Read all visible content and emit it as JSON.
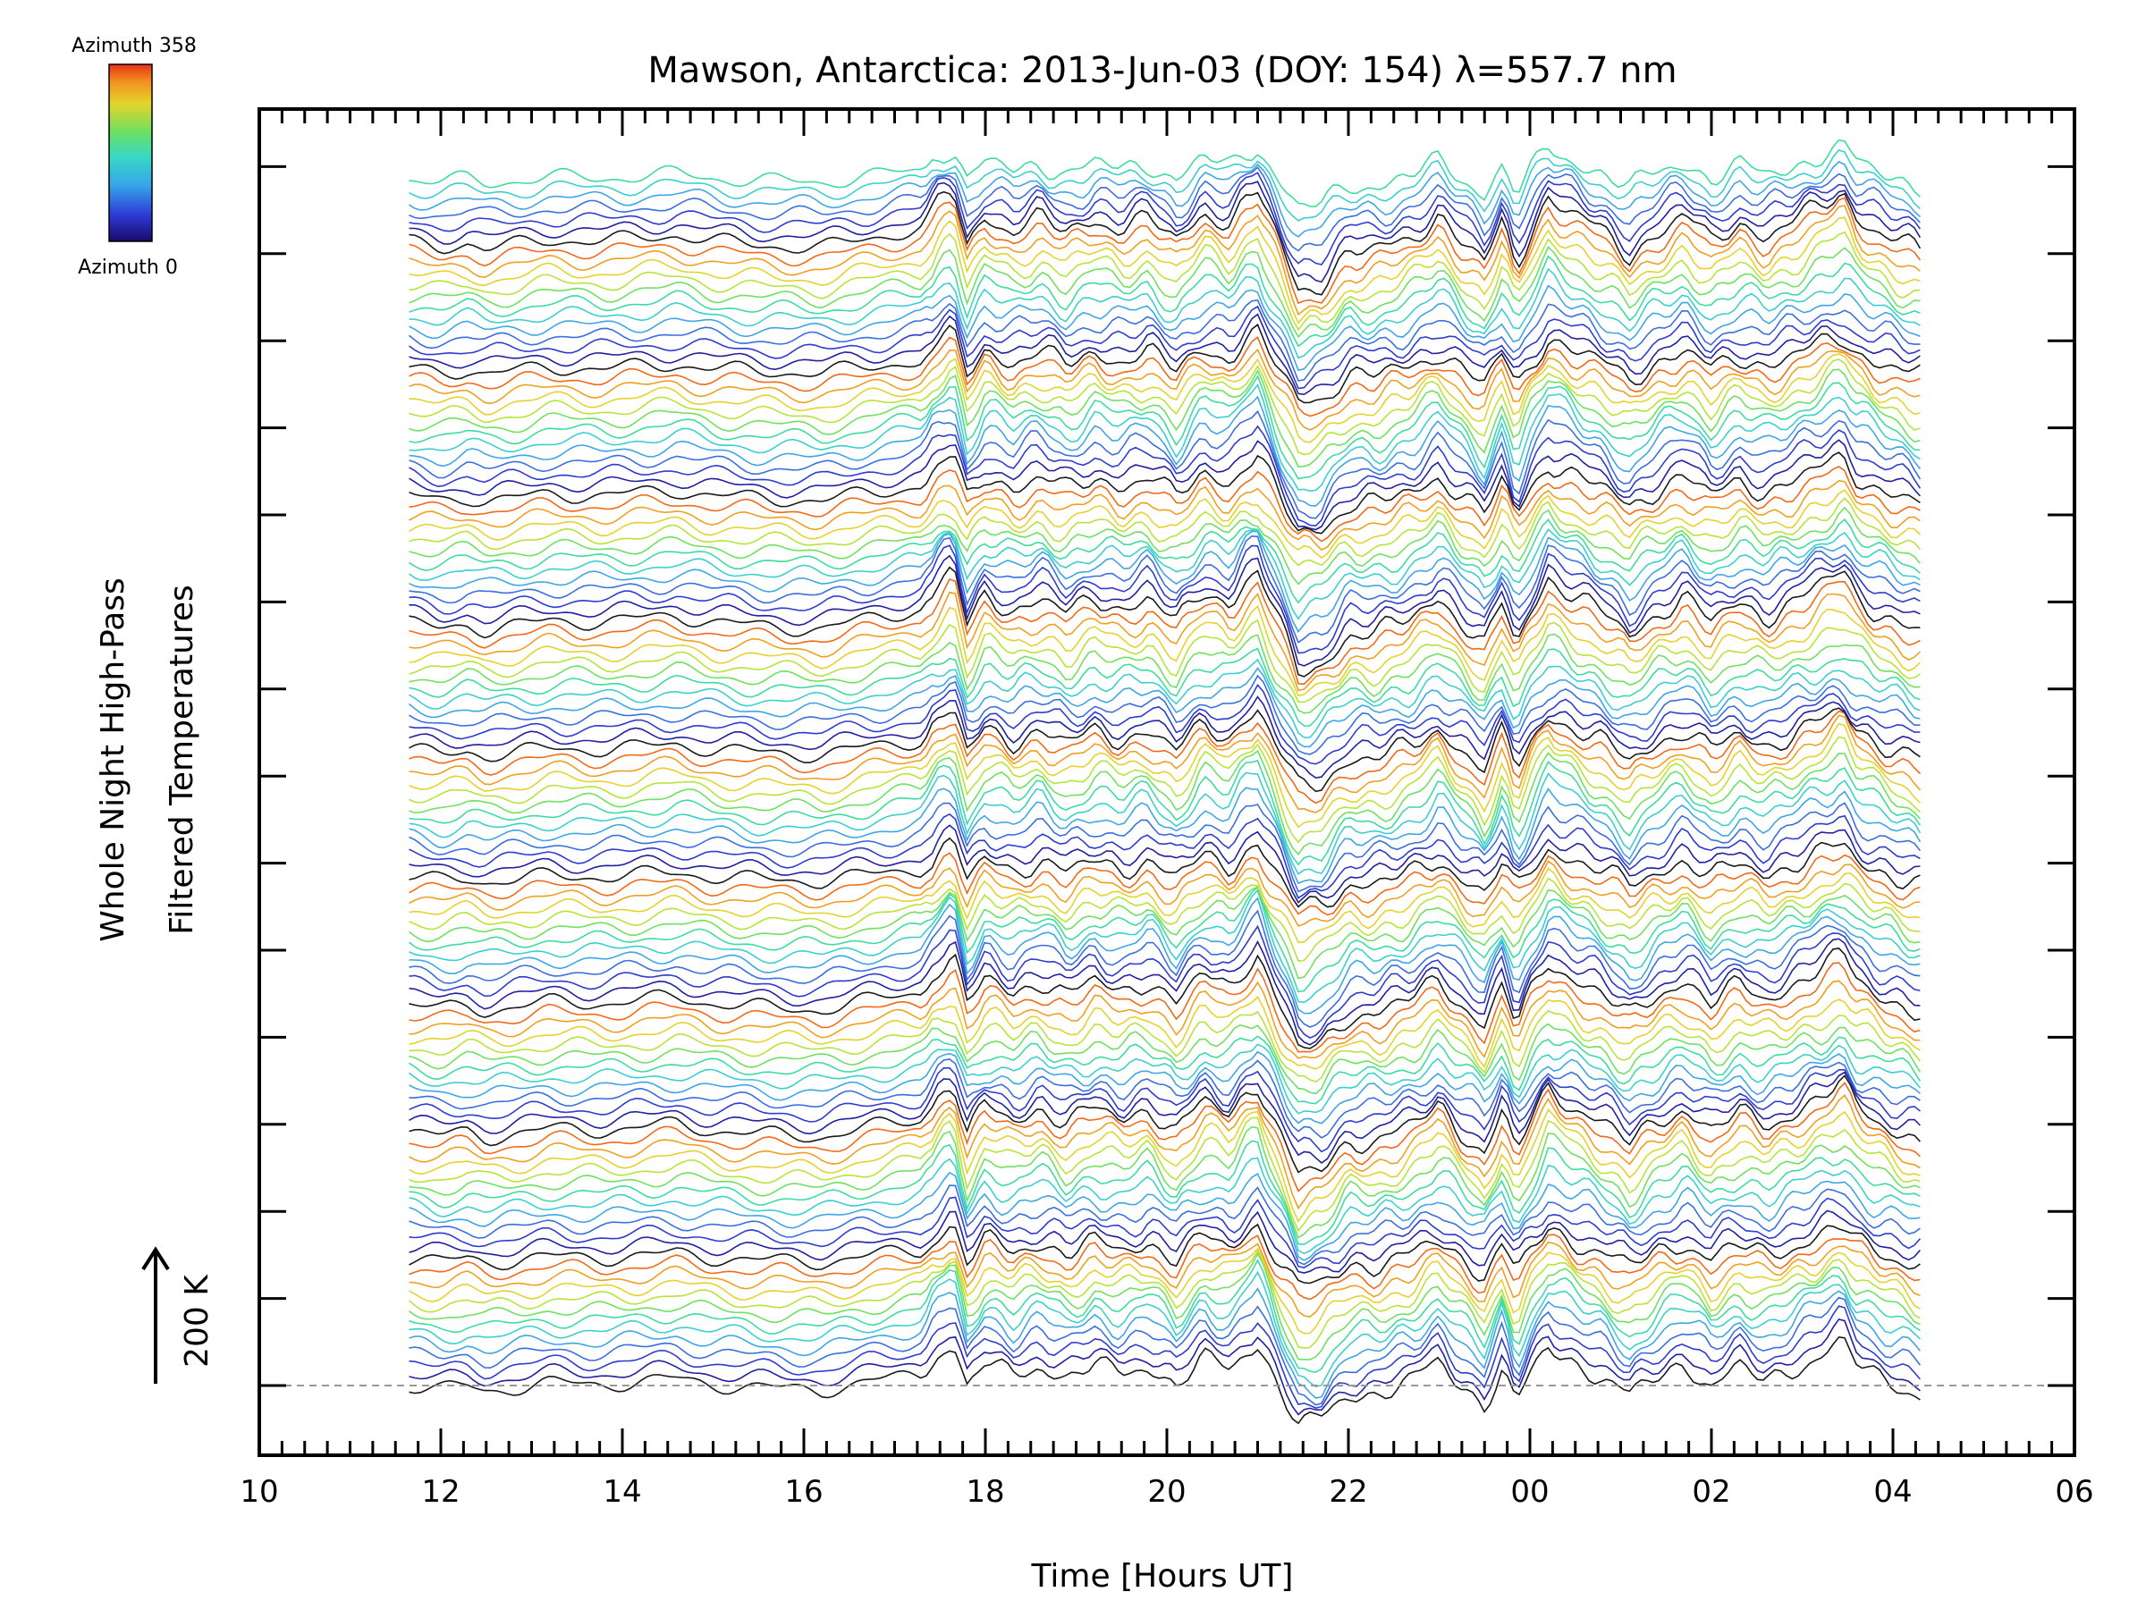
{
  "chart_data": {
    "type": "line",
    "title": "Mawson, Antarctica: 2013-Jun-03 (DOY: 154) λ=557.7 nm",
    "xlabel": "Time [Hours UT]",
    "ylabel_line1": "Whole Night High-Pass",
    "ylabel_line2": "Filtered Temperatures",
    "scale_label": "200 K",
    "colorbar": {
      "top_label": "Azimuth 358",
      "bottom_label": "Azimuth 0",
      "colormap": "rainbow",
      "min": 0,
      "max": 358
    },
    "x_range_hours_ut": [
      10,
      30
    ],
    "x_tick_labels": [
      "10",
      "12",
      "14",
      "16",
      "18",
      "20",
      "22",
      "00",
      "02",
      "04",
      "06"
    ],
    "data_span_hours_ut": [
      11.65,
      28.3
    ],
    "stacked_offset_traces": 115,
    "baseline_dashed": true,
    "color_cycle": [
      "#1a1a1a",
      "#2020a0",
      "#2e3ccf",
      "#3b6fe0",
      "#3fa6e6",
      "#3ccfd0",
      "#3ddca0",
      "#6fe060",
      "#b7e43a",
      "#e6d22e",
      "#f0a020",
      "#f06a18"
    ],
    "base_profile": {
      "x": [
        11.65,
        12.0,
        12.3,
        12.5,
        12.8,
        13.2,
        13.8,
        14.3,
        14.6,
        15.0,
        15.5,
        16.2,
        16.7,
        17.0,
        17.3,
        17.5,
        17.65,
        17.8,
        18.0,
        18.3,
        18.6,
        18.9,
        19.2,
        19.5,
        19.8,
        20.1,
        20.4,
        20.7,
        20.85,
        21.0,
        21.2,
        21.45,
        21.7,
        22.0,
        22.3,
        22.7,
        23.0,
        23.2,
        23.5,
        23.7,
        23.85,
        24.0,
        24.2,
        24.5,
        24.8,
        25.1,
        25.4,
        25.7,
        26.0,
        26.3,
        26.6,
        26.9,
        27.2,
        27.45,
        27.6,
        27.8,
        28.0,
        28.3
      ],
      "y": [
        0,
        -8,
        0,
        -10,
        -4,
        4,
        2,
        8,
        12,
        2,
        -4,
        -8,
        6,
        14,
        20,
        60,
        78,
        -8,
        42,
        18,
        38,
        12,
        36,
        22,
        38,
        -2,
        48,
        28,
        60,
        78,
        10,
        -72,
        -62,
        -15,
        -15,
        8,
        42,
        8,
        -35,
        32,
        -35,
        15,
        68,
        40,
        15,
        -20,
        15,
        40,
        0,
        30,
        10,
        30,
        55,
        75,
        40,
        20,
        5,
        -15
      ]
    }
  }
}
